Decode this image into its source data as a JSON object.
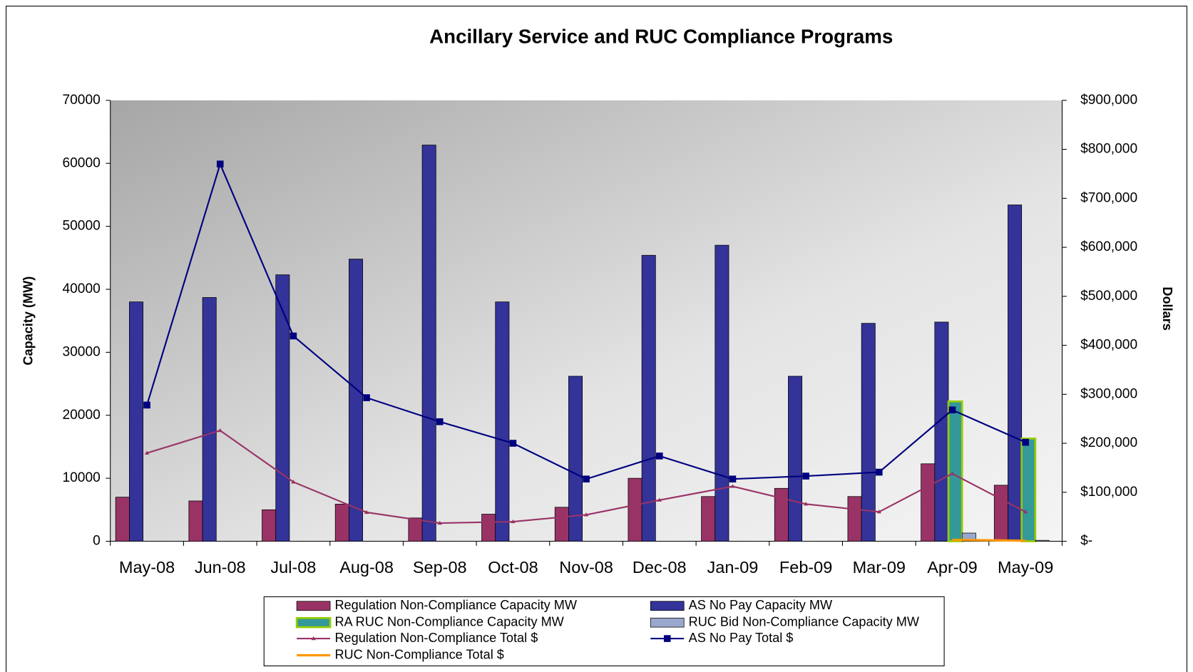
{
  "chart_data": {
    "type": "bar",
    "title": "Ancillary Service and RUC Compliance Programs",
    "y_label": "Capacity (MW)",
    "y2_label": "Dollars",
    "categories": [
      "May-08",
      "Jun-08",
      "Jul-08",
      "Aug-08",
      "Sep-08",
      "Oct-08",
      "Nov-08",
      "Dec-08",
      "Jan-09",
      "Feb-09",
      "Mar-09",
      "Apr-09",
      "May-09"
    ],
    "ylim": [
      0,
      70000
    ],
    "yticks": [
      0,
      10000,
      20000,
      30000,
      40000,
      50000,
      60000,
      70000
    ],
    "y2lim": [
      0,
      900000
    ],
    "y2ticks": [
      {
        "value": 0,
        "label": "$-"
      },
      {
        "value": 100000,
        "label": "$100,000"
      },
      {
        "value": 200000,
        "label": "$200,000"
      },
      {
        "value": 300000,
        "label": "$300,000"
      },
      {
        "value": 400000,
        "label": "$400,000"
      },
      {
        "value": 500000,
        "label": "$500,000"
      },
      {
        "value": 600000,
        "label": "$600,000"
      },
      {
        "value": 700000,
        "label": "$700,000"
      },
      {
        "value": 800000,
        "label": "$800,000"
      },
      {
        "value": 900000,
        "label": "$900,000"
      }
    ],
    "series": [
      {
        "name": "Regulation Non-Compliance Capacity MW",
        "type": "bar",
        "color": "#993366",
        "values": [
          7000,
          6400,
          5000,
          5900,
          3700,
          4300,
          5400,
          10000,
          7100,
          8400,
          7100,
          12300,
          8900
        ]
      },
      {
        "name": "AS No Pay Capacity MW",
        "type": "bar",
        "color": "#333399",
        "values": [
          38000,
          38700,
          42300,
          44800,
          62900,
          38000,
          26200,
          45400,
          47000,
          26200,
          34600,
          34800,
          53400
        ]
      },
      {
        "name": "RA RUC Non-Compliance Capacity MW",
        "type": "bar",
        "color": "#339999",
        "border": "#99cc00",
        "values": [
          null,
          null,
          null,
          null,
          null,
          null,
          null,
          null,
          null,
          null,
          null,
          22200,
          16300
        ]
      },
      {
        "name": "RUC Bid Non-Compliance Capacity MW",
        "type": "bar",
        "color": "#99a8cc",
        "values": [
          null,
          null,
          null,
          null,
          null,
          null,
          null,
          null,
          null,
          null,
          null,
          1300,
          150
        ]
      },
      {
        "name": "Regulation Non-Compliance Total $",
        "type": "line",
        "axis": "y2",
        "color": "#993366",
        "marker": "triangle",
        "values": [
          180000,
          226000,
          121000,
          59000,
          37000,
          40000,
          54000,
          84000,
          112000,
          76000,
          60000,
          138000,
          60000
        ]
      },
      {
        "name": "AS No Pay Total $",
        "type": "line",
        "axis": "y2",
        "color": "#000080",
        "marker": "square",
        "values": [
          278000,
          770000,
          419000,
          293000,
          244000,
          200000,
          127000,
          174000,
          127000,
          133000,
          141000,
          268000,
          202000
        ]
      },
      {
        "name": "RUC Non-Compliance Total $",
        "type": "line",
        "axis": "y2",
        "color": "#ff9900",
        "marker": "none",
        "values": [
          null,
          null,
          null,
          null,
          null,
          null,
          null,
          null,
          null,
          null,
          null,
          3000,
          1000
        ]
      }
    ]
  }
}
